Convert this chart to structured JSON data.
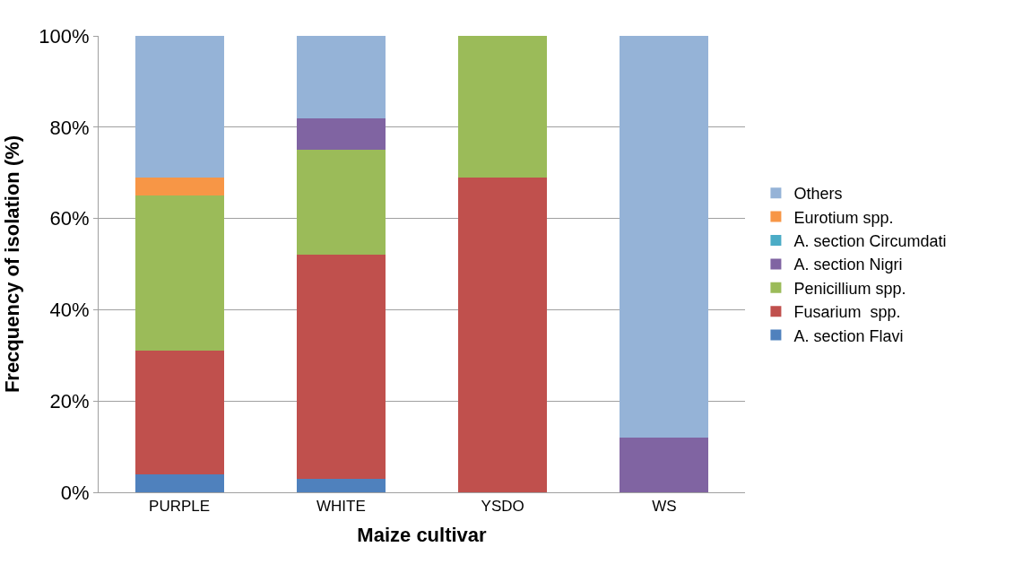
{
  "chart_data": {
    "type": "bar",
    "stacked": true,
    "xlabel": "Maize cultivar",
    "ylabel": "Frecquency of isolation (%)",
    "categories": [
      "PURPLE",
      "WHITE",
      "YSDO",
      "WS"
    ],
    "series": [
      {
        "name": "A. section Flavi",
        "color": "#4f81bd",
        "values": [
          4,
          3,
          0,
          0
        ]
      },
      {
        "name": "Fusarium  spp.",
        "color": "#c0504d",
        "values": [
          27,
          49,
          69,
          0
        ]
      },
      {
        "name": "Penicillium spp.",
        "color": "#9bbb59",
        "values": [
          34,
          23,
          31,
          0
        ]
      },
      {
        "name": "A. section Nigri",
        "color": "#8064a2",
        "values": [
          0,
          7,
          0,
          12
        ]
      },
      {
        "name": "A. section Circumdati",
        "color": "#4bacc6",
        "values": [
          0,
          0,
          0,
          0
        ]
      },
      {
        "name": "Eurotium spp.",
        "color": "#f79646",
        "values": [
          4,
          0,
          0,
          0
        ]
      },
      {
        "name": "Others",
        "color": "#95b3d7",
        "values": [
          31,
          18,
          0,
          88
        ]
      }
    ],
    "ylim": [
      0,
      100
    ],
    "yticks": [
      {
        "value": 0,
        "label": "0%"
      },
      {
        "value": 20,
        "label": "20%"
      },
      {
        "value": 40,
        "label": "40%"
      },
      {
        "value": 60,
        "label": "60%"
      },
      {
        "value": 80,
        "label": "80%"
      },
      {
        "value": 100,
        "label": "100%"
      }
    ],
    "grid": "y",
    "legend": "right"
  }
}
